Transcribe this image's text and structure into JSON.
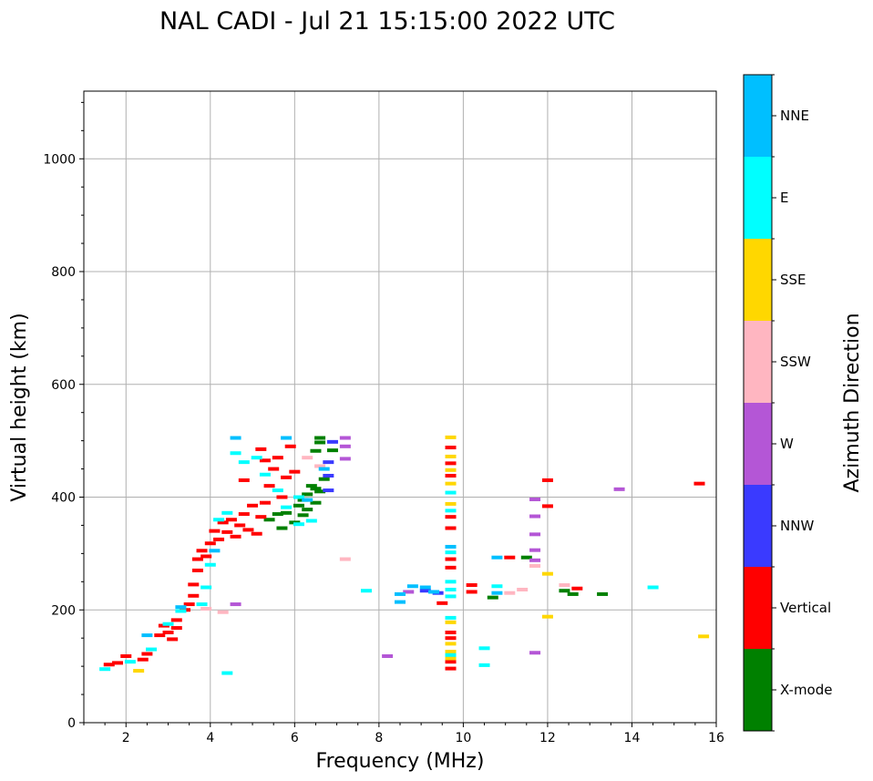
{
  "chart_data": {
    "type": "scatter",
    "title": "NAL CADI - Jul 21 15:15:00 2022 UTC",
    "xlabel": "Frequency (MHz)",
    "ylabel": "Virtual height (km)",
    "xlim": [
      1,
      16
    ],
    "ylim": [
      0,
      1120
    ],
    "x_ticks": [
      2,
      4,
      6,
      8,
      10,
      12,
      14,
      16
    ],
    "y_ticks": [
      0,
      200,
      400,
      600,
      800,
      1000
    ],
    "grid": true,
    "colorbar": {
      "label": "Azimuth Direction",
      "categories": [
        "X-mode",
        "Vertical",
        "NNW",
        "W",
        "SSW",
        "SSE",
        "E",
        "NNE"
      ],
      "colors": [
        "#008000",
        "#ff0000",
        "#3a3aff",
        "#b456d6",
        "#ffb6c1",
        "#ffd700",
        "#00ffff",
        "#00bfff"
      ]
    },
    "series": [
      {
        "name": "X-mode",
        "points": [
          [
            5.4,
            360
          ],
          [
            5.6,
            370
          ],
          [
            5.7,
            345
          ],
          [
            5.8,
            372
          ],
          [
            6.0,
            355
          ],
          [
            6.1,
            385
          ],
          [
            6.2,
            395
          ],
          [
            6.2,
            368
          ],
          [
            6.3,
            405
          ],
          [
            6.3,
            378
          ],
          [
            6.4,
            420
          ],
          [
            6.5,
            415
          ],
          [
            6.5,
            390
          ],
          [
            6.6,
            410
          ],
          [
            6.7,
            432
          ],
          [
            6.5,
            482
          ],
          [
            6.6,
            497
          ],
          [
            6.9,
            483
          ],
          [
            6.6,
            505
          ],
          [
            10.7,
            222
          ],
          [
            12.4,
            234
          ],
          [
            12.6,
            228
          ],
          [
            13.3,
            228
          ],
          [
            11.5,
            293
          ]
        ]
      },
      {
        "name": "Vertical",
        "points": [
          [
            1.6,
            103
          ],
          [
            1.8,
            106
          ],
          [
            2.0,
            118
          ],
          [
            2.4,
            112
          ],
          [
            2.5,
            122
          ],
          [
            2.8,
            155
          ],
          [
            2.9,
            172
          ],
          [
            3.0,
            160
          ],
          [
            3.1,
            148
          ],
          [
            3.2,
            168
          ],
          [
            3.2,
            182
          ],
          [
            3.4,
            200
          ],
          [
            3.5,
            210
          ],
          [
            3.6,
            225
          ],
          [
            3.6,
            245
          ],
          [
            3.7,
            270
          ],
          [
            3.7,
            290
          ],
          [
            3.8,
            305
          ],
          [
            3.9,
            295
          ],
          [
            4.0,
            318
          ],
          [
            4.1,
            340
          ],
          [
            4.2,
            325
          ],
          [
            4.3,
            355
          ],
          [
            4.4,
            338
          ],
          [
            4.5,
            360
          ],
          [
            4.6,
            330
          ],
          [
            4.7,
            350
          ],
          [
            4.8,
            370
          ],
          [
            4.9,
            342
          ],
          [
            5.0,
            385
          ],
          [
            5.1,
            335
          ],
          [
            5.2,
            365
          ],
          [
            5.3,
            390
          ],
          [
            5.4,
            420
          ],
          [
            5.5,
            450
          ],
          [
            5.3,
            465
          ],
          [
            5.6,
            470
          ],
          [
            5.7,
            400
          ],
          [
            5.8,
            435
          ],
          [
            5.9,
            490
          ],
          [
            6.0,
            445
          ],
          [
            5.2,
            485
          ],
          [
            4.8,
            430
          ],
          [
            9.7,
            96
          ],
          [
            9.7,
            108
          ],
          [
            9.7,
            150
          ],
          [
            9.7,
            160
          ],
          [
            9.7,
            275
          ],
          [
            9.7,
            290
          ],
          [
            9.7,
            345
          ],
          [
            9.7,
            365
          ],
          [
            9.7,
            438
          ],
          [
            9.7,
            460
          ],
          [
            9.7,
            488
          ],
          [
            9.5,
            212
          ],
          [
            10.2,
            232
          ],
          [
            10.2,
            244
          ],
          [
            11.1,
            293
          ],
          [
            12.0,
            384
          ],
          [
            12.0,
            430
          ],
          [
            12.7,
            238
          ],
          [
            15.6,
            424
          ]
        ]
      },
      {
        "name": "NNW",
        "points": [
          [
            6.8,
            412
          ],
          [
            6.8,
            438
          ],
          [
            6.8,
            462
          ],
          [
            9.1,
            234
          ],
          [
            9.4,
            230
          ],
          [
            6.9,
            498
          ]
        ]
      },
      {
        "name": "W",
        "points": [
          [
            4.6,
            210
          ],
          [
            7.2,
            505
          ],
          [
            7.2,
            468
          ],
          [
            8.2,
            118
          ],
          [
            8.7,
            232
          ],
          [
            11.7,
            396
          ],
          [
            11.7,
            366
          ],
          [
            11.7,
            334
          ],
          [
            11.7,
            306
          ],
          [
            11.7,
            288
          ],
          [
            11.7,
            124
          ],
          [
            13.7,
            414
          ],
          [
            7.2,
            490
          ]
        ]
      },
      {
        "name": "SSW",
        "points": [
          [
            3.9,
            202
          ],
          [
            4.3,
            196
          ],
          [
            7.2,
            290
          ],
          [
            11.1,
            230
          ],
          [
            11.4,
            236
          ],
          [
            11.7,
            278
          ],
          [
            12.4,
            244
          ],
          [
            6.6,
            455
          ],
          [
            6.3,
            470
          ]
        ]
      },
      {
        "name": "SSE",
        "points": [
          [
            2.3,
            92
          ],
          [
            9.7,
            114
          ],
          [
            9.7,
            126
          ],
          [
            9.7,
            140
          ],
          [
            9.7,
            178
          ],
          [
            9.7,
            388
          ],
          [
            9.7,
            424
          ],
          [
            9.7,
            448
          ],
          [
            9.7,
            472
          ],
          [
            9.7,
            506
          ],
          [
            12.0,
            188
          ],
          [
            12.0,
            264
          ],
          [
            15.7,
            153
          ]
        ]
      },
      {
        "name": "E",
        "points": [
          [
            1.5,
            95
          ],
          [
            2.1,
            108
          ],
          [
            2.6,
            130
          ],
          [
            3.0,
            175
          ],
          [
            3.3,
            198
          ],
          [
            3.8,
            210
          ],
          [
            3.9,
            240
          ],
          [
            4.0,
            280
          ],
          [
            4.2,
            360
          ],
          [
            4.4,
            372
          ],
          [
            4.6,
            478
          ],
          [
            4.8,
            462
          ],
          [
            5.1,
            470
          ],
          [
            5.3,
            440
          ],
          [
            5.6,
            412
          ],
          [
            5.8,
            382
          ],
          [
            6.1,
            400
          ],
          [
            6.1,
            352
          ],
          [
            6.4,
            358
          ],
          [
            4.4,
            88
          ],
          [
            7.7,
            234
          ],
          [
            9.7,
            120
          ],
          [
            9.7,
            186
          ],
          [
            9.7,
            224
          ],
          [
            9.7,
            236
          ],
          [
            9.7,
            250
          ],
          [
            9.7,
            302
          ],
          [
            9.7,
            376
          ],
          [
            9.7,
            408
          ],
          [
            10.5,
            102
          ],
          [
            10.5,
            132
          ],
          [
            10.8,
            242
          ],
          [
            14.5,
            240
          ]
        ]
      },
      {
        "name": "NNE",
        "points": [
          [
            2.5,
            155
          ],
          [
            3.3,
            205
          ],
          [
            4.1,
            305
          ],
          [
            4.6,
            505
          ],
          [
            5.8,
            505
          ],
          [
            6.3,
            395
          ],
          [
            6.7,
            450
          ],
          [
            8.5,
            214
          ],
          [
            8.5,
            228
          ],
          [
            8.8,
            242
          ],
          [
            9.1,
            240
          ],
          [
            9.3,
            232
          ],
          [
            9.7,
            312
          ],
          [
            10.8,
            230
          ],
          [
            10.8,
            293
          ]
        ]
      }
    ]
  }
}
